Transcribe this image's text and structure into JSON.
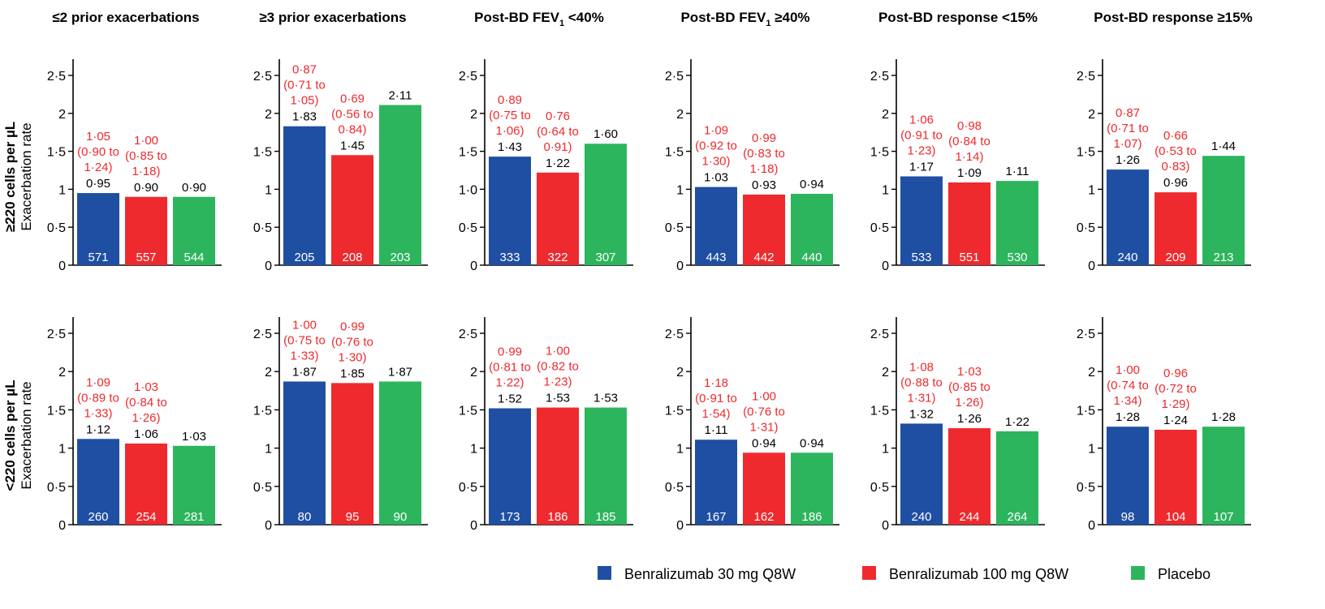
{
  "colors": {
    "series_1": "#1f4fa3",
    "series_2": "#ee2a2e",
    "series_3": "#2db55d",
    "ci_text": "#ee2a2e",
    "axis": "#000000"
  },
  "legend": {
    "items": [
      {
        "label": "Benralizumab 30 mg Q8W",
        "color": "#1f4fa3"
      },
      {
        "label": "Benralizumab 100 mg Q8W",
        "color": "#ee2a2e"
      },
      {
        "label": "Placebo",
        "color": "#2db55d"
      }
    ]
  },
  "chart_data": {
    "type": "bar",
    "ylim": [
      0,
      2.5
    ],
    "columns": [
      {
        "pre": "≤2 prior exacerbations",
        "sub": "",
        "post": ""
      },
      {
        "pre": "≥3 prior exacerbations",
        "sub": "",
        "post": ""
      },
      {
        "pre": "Post-BD FEV",
        "sub": "1",
        "post": " <40%"
      },
      {
        "pre": "Post-BD FEV",
        "sub": "1",
        "post": " ≥40%"
      },
      {
        "pre": "Post-BD response <15%",
        "sub": "",
        "post": ""
      },
      {
        "pre": "Post-BD response ≥15%",
        "sub": "",
        "post": ""
      }
    ],
    "rows": [
      {
        "label_bold": "≥220 cells per µL",
        "label": "Exacerbation rate",
        "ticks": [
          "0",
          "0·5",
          "1",
          "1·5",
          "2",
          "2·5"
        ],
        "panels": [
          {
            "values": [
              0.95,
              0.9,
              0.9
            ],
            "value_labels": [
              "0·95",
              "0·90",
              "0·90"
            ],
            "n": [
              "571",
              "557",
              "544"
            ],
            "ci": [
              [
                "1·05",
                "(0·90 to",
                "1·24)"
              ],
              [
                "1·00",
                "(0·85 to",
                "1·18)"
              ]
            ]
          },
          {
            "values": [
              1.83,
              1.45,
              2.11
            ],
            "value_labels": [
              "1·83",
              "1·45",
              "2·11"
            ],
            "n": [
              "205",
              "208",
              "203"
            ],
            "ci": [
              [
                "0·87",
                "(0·71 to",
                "1·05)"
              ],
              [
                "0·69",
                "(0·56 to",
                "0·84)"
              ]
            ]
          },
          {
            "values": [
              1.43,
              1.22,
              1.6
            ],
            "value_labels": [
              "1·43",
              "1·22",
              "1·60"
            ],
            "n": [
              "333",
              "322",
              "307"
            ],
            "ci": [
              [
                "0·89",
                "(0·75 to",
                "1·06)"
              ],
              [
                "0·76",
                "(0·64 to",
                "0·91)"
              ]
            ],
            "ticks": [
              "0",
              "0·5",
              "1·0",
              "1·5",
              "2",
              "2·5"
            ]
          },
          {
            "values": [
              1.03,
              0.93,
              0.94
            ],
            "value_labels": [
              "1·03",
              "0·93",
              "0·94"
            ],
            "n": [
              "443",
              "442",
              "440"
            ],
            "ci": [
              [
                "1·09",
                "(0·92 to",
                "1·30)"
              ],
              [
                "0·99",
                "(0·83 to",
                "1·18)"
              ]
            ]
          },
          {
            "values": [
              1.17,
              1.09,
              1.11
            ],
            "value_labels": [
              "1·17",
              "1·09",
              "1·11"
            ],
            "n": [
              "533",
              "551",
              "530"
            ],
            "ci": [
              [
                "1·06",
                "(0·91 to",
                "1·23)"
              ],
              [
                "0·98",
                "(0·84 to",
                "1·14)"
              ]
            ]
          },
          {
            "values": [
              1.26,
              0.96,
              1.44
            ],
            "value_labels": [
              "1·26",
              "0·96",
              "1·44"
            ],
            "n": [
              "240",
              "209",
              "213"
            ],
            "ci": [
              [
                "0·87",
                "(0·71 to",
                "1·07)"
              ],
              [
                "0·66",
                "(0·53 to",
                "0·83)"
              ]
            ]
          }
        ]
      },
      {
        "label_bold": "<220 cells per µL",
        "label": "Exacerbation rate",
        "ticks": [
          "0",
          "0·5",
          "1",
          "1·5",
          "2",
          "2·5"
        ],
        "panels": [
          {
            "values": [
              1.12,
              1.06,
              1.03
            ],
            "value_labels": [
              "1·12",
              "1·06",
              "1·03"
            ],
            "n": [
              "260",
              "254",
              "281"
            ],
            "ci": [
              [
                "1·09",
                "(0·89 to",
                "1·33)"
              ],
              [
                "1·03",
                "(0·84 to",
                "1·26)"
              ]
            ]
          },
          {
            "values": [
              1.87,
              1.85,
              1.87
            ],
            "value_labels": [
              "1·87",
              "1·85",
              "1·87"
            ],
            "n": [
              "80",
              "95",
              "90"
            ],
            "ci": [
              [
                "1·00",
                "(0·75 to",
                "1·33)"
              ],
              [
                "0·99",
                "(0·76 to",
                "1·30)"
              ]
            ]
          },
          {
            "values": [
              1.52,
              1.53,
              1.53
            ],
            "value_labels": [
              "1·52",
              "1·53",
              "1·53"
            ],
            "n": [
              "173",
              "186",
              "185"
            ],
            "ci": [
              [
                "0·99",
                "(0·81 to",
                "1·22)"
              ],
              [
                "1·00",
                "(0·82 to",
                "1·23)"
              ]
            ]
          },
          {
            "values": [
              1.11,
              0.94,
              0.94
            ],
            "value_labels": [
              "1·11",
              "0·94",
              "0·94"
            ],
            "n": [
              "167",
              "162",
              "186"
            ],
            "ci": [
              [
                "1·18",
                "(0·91 to",
                "1·54)"
              ],
              [
                "1·00",
                "(0·76 to",
                "1·31)"
              ]
            ]
          },
          {
            "values": [
              1.32,
              1.26,
              1.22
            ],
            "value_labels": [
              "1·32",
              "1·26",
              "1·22"
            ],
            "n": [
              "240",
              "244",
              "264"
            ],
            "ci": [
              [
                "1·08",
                "(0·88 to",
                "1·31)"
              ],
              [
                "1·03",
                "(0·85 to",
                "1·26)"
              ]
            ]
          },
          {
            "values": [
              1.28,
              1.24,
              1.28
            ],
            "value_labels": [
              "1·28",
              "1·24",
              "1·28"
            ],
            "n": [
              "98",
              "104",
              "107"
            ],
            "ci": [
              [
                "1·00",
                "(0·74 to",
                "1·34)"
              ],
              [
                "0·96",
                "(0·72 to",
                "1·29)"
              ]
            ]
          }
        ]
      }
    ]
  }
}
